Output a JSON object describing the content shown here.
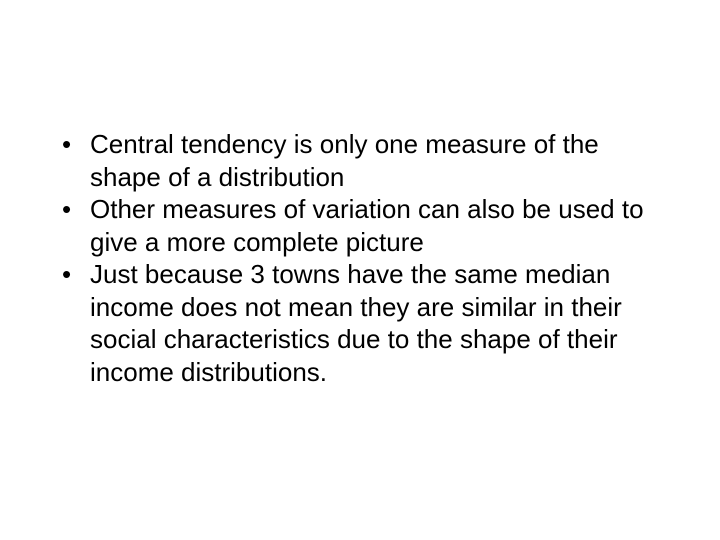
{
  "slide": {
    "bullets": [
      "Central tendency is only one measure of the shape of a distribution",
      "Other measures of variation can also be used to give a more complete picture",
      "Just because 3 towns have the same median income does not mean they are similar in their social characteristics due to the shape of their income distributions."
    ],
    "text_color": "#000000",
    "background_color": "#ffffff",
    "font_size_pt": 20,
    "font_family": "Arial"
  }
}
